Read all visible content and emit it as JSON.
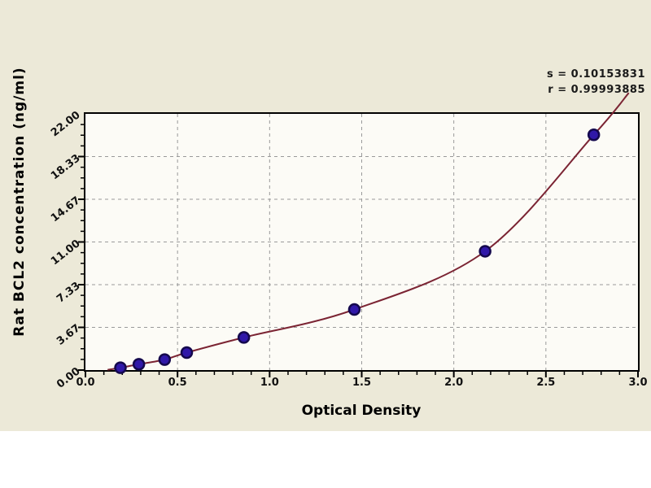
{
  "canvas": {
    "background": "#ECE9D8",
    "plot_background": "#FCFBF6",
    "frame_color": "#000000",
    "grid_color": "#9A9A9A"
  },
  "annotation": {
    "s_label": "s = 0.10153831",
    "r_label": "r = 0.99993885"
  },
  "chart_data": {
    "type": "scatter",
    "title": "",
    "xlabel": "Optical Density",
    "ylabel": "Rat BCL2 concentration (ng/ml)",
    "xlim": [
      0.0,
      3.0
    ],
    "ylim": [
      0.0,
      22.0
    ],
    "x_major_ticks": [
      0.0,
      0.5,
      1.0,
      1.5,
      2.0,
      2.5,
      3.0
    ],
    "x_tick_labels": [
      "0.0",
      "0.5",
      "1.0",
      "1.5",
      "2.0",
      "2.5",
      "3.0"
    ],
    "x_minor_step": 0.1,
    "y_major_ticks": [
      0.0,
      3.6667,
      7.3333,
      11.0,
      14.6667,
      18.3333,
      22.0
    ],
    "y_tick_labels": [
      "0.00",
      "3.67",
      "7.33",
      "11.00",
      "14.67",
      "18.33",
      "22.00"
    ],
    "y_minor_per_major": 4,
    "grid": "dashed, on both axes at major ticks",
    "legend": "none",
    "points": [
      {
        "x": 0.19,
        "y": 0.2
      },
      {
        "x": 0.29,
        "y": 0.5
      },
      {
        "x": 0.43,
        "y": 0.9
      },
      {
        "x": 0.55,
        "y": 1.5
      },
      {
        "x": 0.86,
        "y": 2.8
      },
      {
        "x": 1.46,
        "y": 5.2
      },
      {
        "x": 2.17,
        "y": 10.2
      },
      {
        "x": 2.76,
        "y": 20.2
      }
    ],
    "curve_extension_start": {
      "x": 0.12,
      "y": 0.02
    },
    "curve_extension_end": {
      "x": 2.95,
      "y": 23.8
    },
    "fit_stats": {
      "s": 0.10153831,
      "r": 0.99993885
    },
    "curve_color": "#7B2433",
    "marker_color": "#3018A8",
    "marker_edge_color": "#14084D"
  }
}
